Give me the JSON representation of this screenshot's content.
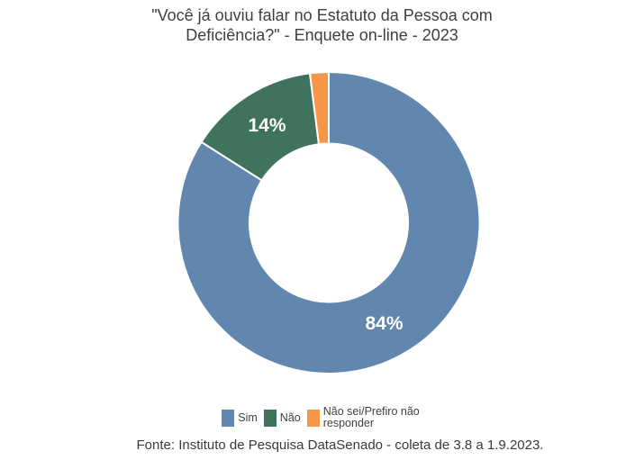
{
  "chart_data": {
    "type": "pie",
    "subtype": "donut",
    "title": "\"Você já ouviu falar no Estatuto da Pessoa com Deficiência?\" - Enquete on-line - 2023",
    "legend_position": "bottom",
    "start_angle_deg": 0,
    "direction": "clockwise",
    "segments": [
      {
        "label": "Sim",
        "value": 84,
        "display": "84%",
        "color": "#6287ae",
        "show_label": true
      },
      {
        "label": "Não",
        "value": 14,
        "display": "14%",
        "color": "#40735c",
        "show_label": true
      },
      {
        "label": "Não sei/Prefiro não responder",
        "value": 2,
        "display": "2%",
        "color": "#f79646",
        "show_label": false
      }
    ],
    "source_note": "Fonte: Instituto de Pesquisa DataSenado - coleta de 3.8 a 1.9.2023."
  },
  "colors": {
    "title_text": "#3f3f3f",
    "legend_text": "#404040",
    "source_text": "#3a3a3a",
    "slice_label_text": "#ffffff",
    "slice_separator": "#ffffff",
    "background": "#ffffff"
  }
}
